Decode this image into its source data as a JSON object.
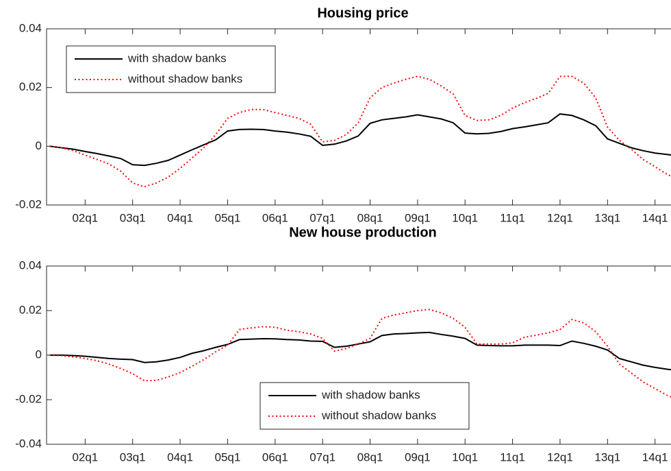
{
  "chart_data": [
    {
      "type": "line",
      "title": "Housing price",
      "x": [
        1,
        2,
        3,
        4,
        5,
        6,
        7,
        8,
        9,
        10,
        11,
        12,
        13,
        14,
        15,
        16,
        17,
        18,
        19,
        20,
        21,
        22,
        23,
        24,
        25,
        26,
        27,
        28,
        29,
        30,
        31,
        32,
        33,
        34,
        35,
        36,
        37,
        38,
        39,
        40,
        41,
        42,
        43,
        44,
        45,
        46,
        47,
        48,
        49,
        50,
        51,
        52,
        53,
        54
      ],
      "xlim": [
        0.75,
        54.5
      ],
      "xticks": [
        {
          "value": 4,
          "label": "02q1"
        },
        {
          "value": 8,
          "label": "03q1"
        },
        {
          "value": 12,
          "label": "04q1"
        },
        {
          "value": 16,
          "label": "05q1"
        },
        {
          "value": 20,
          "label": "06q1"
        },
        {
          "value": 24,
          "label": "07q1"
        },
        {
          "value": 28,
          "label": "08q1"
        },
        {
          "value": 32,
          "label": "09q1"
        },
        {
          "value": 36,
          "label": "10q1"
        },
        {
          "value": 40,
          "label": "11q1"
        },
        {
          "value": 44,
          "label": "12q1"
        },
        {
          "value": 48,
          "label": "13q1"
        },
        {
          "value": 52,
          "label": "14q1"
        }
      ],
      "ylim": [
        -0.02,
        0.04
      ],
      "yticks": [
        -0.02,
        0,
        0.02,
        0.04
      ],
      "legend": "upper left",
      "series": [
        {
          "name": "with shadow banks",
          "color": "#000000",
          "style": "solid",
          "values": [
            0,
            -0.0005,
            -0.001,
            -0.0018,
            -0.0025,
            -0.0033,
            -0.0042,
            -0.0063,
            -0.0065,
            -0.0058,
            -0.0048,
            -0.003,
            -0.0012,
            0.0005,
            0.0022,
            0.0052,
            0.0057,
            0.0058,
            0.0057,
            0.0052,
            0.0048,
            0.0042,
            0.0034,
            0.0003,
            0.0007,
            0.0018,
            0.0035,
            0.0078,
            0.009,
            0.0095,
            0.01,
            0.0107,
            0.01,
            0.0093,
            0.008,
            0.0045,
            0.0042,
            0.0044,
            0.005,
            0.006,
            0.0066,
            0.0073,
            0.008,
            0.011,
            0.0105,
            0.009,
            0.007,
            0.0025,
            0.001,
            -0.0005,
            -0.0015,
            -0.0023,
            -0.0028,
            -0.0033
          ]
        },
        {
          "name": "without shadow banks",
          "color": "#ff0000",
          "style": "dotted",
          "values": [
            0,
            -0.0005,
            -0.0015,
            -0.003,
            -0.0045,
            -0.006,
            -0.0085,
            -0.0125,
            -0.0138,
            -0.0125,
            -0.0105,
            -0.0075,
            -0.004,
            -0.0005,
            0.004,
            0.0095,
            0.0115,
            0.0125,
            0.0125,
            0.0115,
            0.0105,
            0.0095,
            0.0075,
            0.0015,
            0.002,
            0.004,
            0.008,
            0.0165,
            0.02,
            0.0215,
            0.0228,
            0.0238,
            0.0228,
            0.0205,
            0.0178,
            0.0105,
            0.0088,
            0.009,
            0.0105,
            0.013,
            0.0148,
            0.0163,
            0.018,
            0.0238,
            0.0238,
            0.0215,
            0.0165,
            0.0065,
            0.002,
            -0.001,
            -0.0045,
            -0.007,
            -0.0095,
            -0.0115
          ]
        }
      ]
    },
    {
      "type": "line",
      "title": "New house production",
      "x": [
        1,
        2,
        3,
        4,
        5,
        6,
        7,
        8,
        9,
        10,
        11,
        12,
        13,
        14,
        15,
        16,
        17,
        18,
        19,
        20,
        21,
        22,
        23,
        24,
        25,
        26,
        27,
        28,
        29,
        30,
        31,
        32,
        33,
        34,
        35,
        36,
        37,
        38,
        39,
        40,
        41,
        42,
        43,
        44,
        45,
        46,
        47,
        48,
        49,
        50,
        51,
        52,
        53,
        54
      ],
      "xlim": [
        0.75,
        54.5
      ],
      "xticks": [
        {
          "value": 4,
          "label": "02q1"
        },
        {
          "value": 8,
          "label": "03q1"
        },
        {
          "value": 12,
          "label": "04q1"
        },
        {
          "value": 16,
          "label": "05q1"
        },
        {
          "value": 20,
          "label": "06q1"
        },
        {
          "value": 24,
          "label": "07q1"
        },
        {
          "value": 28,
          "label": "08q1"
        },
        {
          "value": 32,
          "label": "09q1"
        },
        {
          "value": 36,
          "label": "10q1"
        },
        {
          "value": 40,
          "label": "11q1"
        },
        {
          "value": 44,
          "label": "12q1"
        },
        {
          "value": 48,
          "label": "13q1"
        },
        {
          "value": 52,
          "label": "14q1"
        }
      ],
      "ylim": [
        -0.04,
        0.04
      ],
      "yticks": [
        -0.04,
        -0.02,
        0,
        0.02,
        0.04
      ],
      "legend": "lower center",
      "series": [
        {
          "name": "with shadow banks",
          "color": "#000000",
          "style": "solid",
          "values": [
            0,
            0,
            -0.0002,
            -0.0005,
            -0.001,
            -0.0015,
            -0.0018,
            -0.002,
            -0.0033,
            -0.003,
            -0.0022,
            -0.001,
            0.0008,
            0.002,
            0.0035,
            0.0048,
            0.007,
            0.0072,
            0.0074,
            0.0073,
            0.007,
            0.0068,
            0.0063,
            0.0062,
            0.0035,
            0.004,
            0.005,
            0.006,
            0.0088,
            0.0095,
            0.0097,
            0.01,
            0.0102,
            0.0093,
            0.0085,
            0.0075,
            0.0045,
            0.0043,
            0.0042,
            0.0042,
            0.0045,
            0.0045,
            0.0045,
            0.0043,
            0.0063,
            0.0053,
            0.004,
            0.0023,
            -0.0015,
            -0.003,
            -0.0045,
            -0.0055,
            -0.0063,
            -0.007
          ]
        },
        {
          "name": "without shadow banks",
          "color": "#ff0000",
          "style": "dotted",
          "values": [
            0,
            -0.0002,
            -0.0008,
            -0.0015,
            -0.0025,
            -0.004,
            -0.006,
            -0.0083,
            -0.0115,
            -0.0113,
            -0.0098,
            -0.0078,
            -0.005,
            -0.002,
            0.0015,
            0.0045,
            0.0115,
            0.0122,
            0.0128,
            0.0125,
            0.0112,
            0.0105,
            0.0095,
            0.0075,
            0.0018,
            0.003,
            0.005,
            0.0075,
            0.0165,
            0.018,
            0.019,
            0.02,
            0.0205,
            0.019,
            0.0165,
            0.0125,
            0.005,
            0.005,
            0.005,
            0.0055,
            0.008,
            0.009,
            0.01,
            0.0115,
            0.016,
            0.0145,
            0.0105,
            0.004,
            -0.004,
            -0.008,
            -0.012,
            -0.015,
            -0.018,
            -0.02
          ]
        }
      ]
    }
  ]
}
